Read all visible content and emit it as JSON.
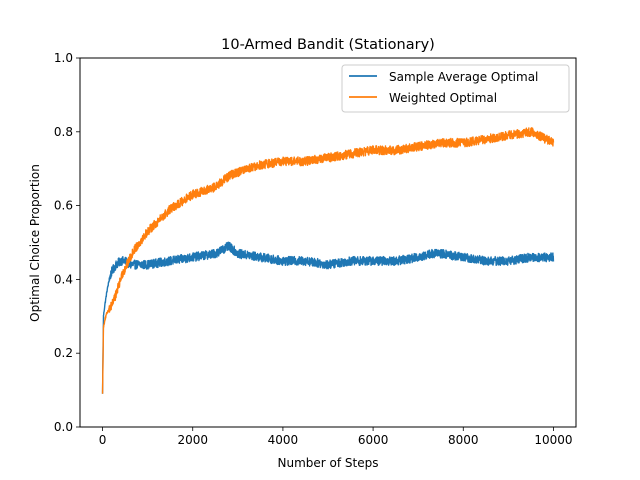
{
  "chart_data": {
    "type": "line",
    "title": "10-Armed Bandit (Stationary)",
    "xlabel": "Number of Steps",
    "ylabel": "Optimal Choice Proportion",
    "xlim": [
      -500,
      10500
    ],
    "ylim": [
      0.0,
      1.0
    ],
    "xticks": [
      "0",
      "2000",
      "4000",
      "6000",
      "8000",
      "10000"
    ],
    "yticks": [
      "0.0",
      "0.2",
      "0.4",
      "0.6",
      "0.8",
      "1.0"
    ],
    "legend": "top-right",
    "grid": false,
    "series": [
      {
        "name": "Sample Average Optimal",
        "color": "#1f77b4",
        "noise": 0.012,
        "x": [
          0,
          20,
          50,
          100,
          150,
          200,
          300,
          400,
          500,
          600,
          800,
          1000,
          1500,
          2000,
          2500,
          2800,
          3000,
          3500,
          4000,
          4500,
          5000,
          5500,
          6000,
          6500,
          7000,
          7300,
          7500,
          8000,
          8500,
          9000,
          9500,
          10000
        ],
        "y": [
          0.09,
          0.3,
          0.33,
          0.37,
          0.4,
          0.42,
          0.44,
          0.45,
          0.45,
          0.44,
          0.44,
          0.44,
          0.45,
          0.46,
          0.47,
          0.49,
          0.47,
          0.46,
          0.45,
          0.45,
          0.44,
          0.45,
          0.45,
          0.45,
          0.46,
          0.47,
          0.47,
          0.46,
          0.45,
          0.45,
          0.46,
          0.46
        ]
      },
      {
        "name": "Weighted Optimal",
        "color": "#ff7f0e",
        "noise": 0.012,
        "x": [
          0,
          20,
          50,
          100,
          200,
          300,
          400,
          500,
          700,
          1000,
          1500,
          2000,
          2500,
          2800,
          3000,
          3500,
          4000,
          4500,
          5000,
          5500,
          6000,
          6500,
          7000,
          7500,
          8000,
          8500,
          9000,
          9500,
          10000
        ],
        "y": [
          0.09,
          0.27,
          0.29,
          0.31,
          0.33,
          0.36,
          0.4,
          0.43,
          0.48,
          0.53,
          0.59,
          0.63,
          0.65,
          0.68,
          0.69,
          0.71,
          0.72,
          0.72,
          0.73,
          0.74,
          0.75,
          0.75,
          0.76,
          0.77,
          0.77,
          0.78,
          0.79,
          0.8,
          0.77
        ]
      }
    ]
  }
}
